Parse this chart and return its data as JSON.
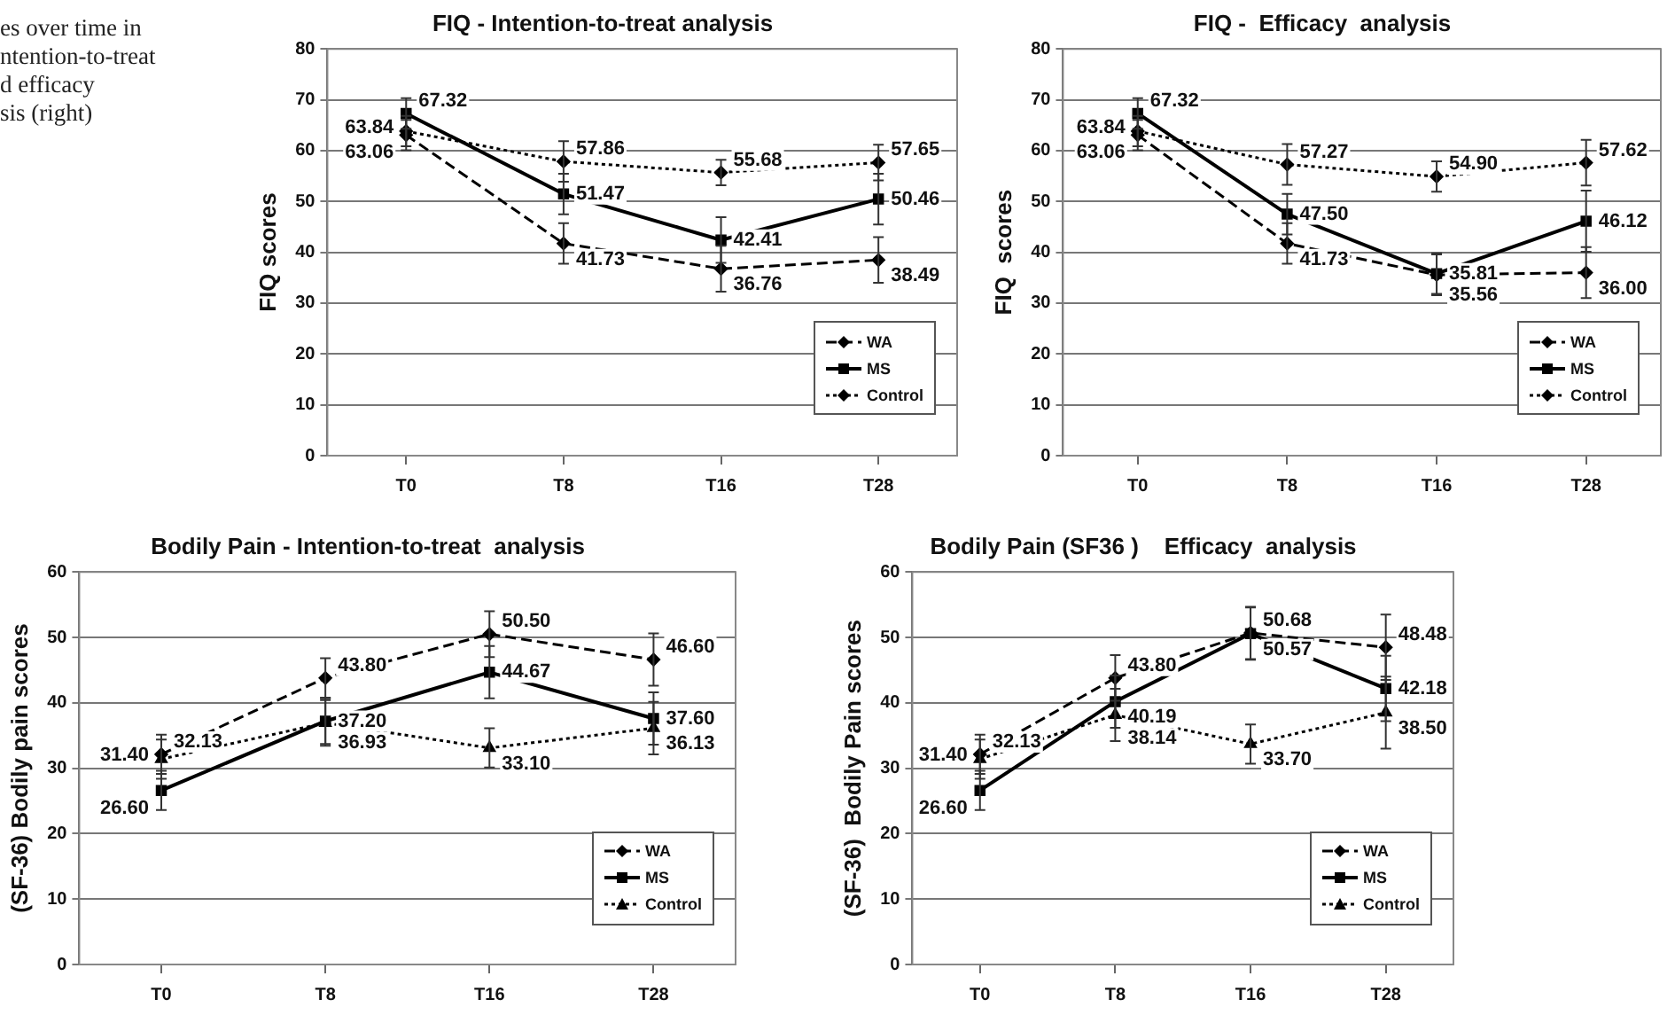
{
  "chart_data": [
    {
      "type": "other",
      "annotations": [
        "es over time in",
        "ntention-to-treat",
        "d efficacy",
        "sis (right)"
      ]
    },
    {
      "type": "line",
      "title": "FIQ - Intention-to-treat analysis",
      "ylabel": "FIQ scores",
      "categories": [
        "T0",
        "T8",
        "T16",
        "T28"
      ],
      "ylim": [
        0,
        80
      ],
      "yticks": [
        0,
        10,
        20,
        30,
        40,
        50,
        60,
        70,
        80
      ],
      "grid": "y",
      "legend": "bottom right",
      "series": [
        {
          "name": "WA",
          "color": "#000000",
          "line_style": "dashed",
          "marker": "diamond",
          "values": [
            63.06,
            41.73,
            36.76,
            38.49
          ],
          "value_labels": [
            "63.06",
            "41.73",
            "36.76",
            "38.49"
          ],
          "errors": [
            3,
            4,
            4.5,
            4.5
          ]
        },
        {
          "name": "MS",
          "color": "#000000",
          "line_style": "solid",
          "marker": "square",
          "values": [
            67.32,
            51.47,
            42.41,
            50.46
          ],
          "value_labels": [
            "67.32",
            "51.47",
            "42.41",
            "50.46"
          ],
          "errors": [
            3,
            4,
            4.5,
            5
          ]
        },
        {
          "name": "Control",
          "color": "#000000",
          "line_style": "dotted",
          "marker": "diamond",
          "values": [
            63.84,
            57.86,
            55.68,
            57.65
          ],
          "value_labels": [
            "63.84",
            "57.86",
            "55.68",
            "57.65"
          ],
          "errors": [
            3,
            4,
            2.5,
            3.5
          ]
        }
      ]
    },
    {
      "type": "line",
      "title": "FIQ -  Efficacy  analysis",
      "ylabel": "FIQ  scores",
      "categories": [
        "T0",
        "T8",
        "T16",
        "T28"
      ],
      "ylim": [
        0,
        80
      ],
      "yticks": [
        0,
        10,
        20,
        30,
        40,
        50,
        60,
        70,
        80
      ],
      "grid": "y",
      "legend": "bottom right",
      "series": [
        {
          "name": "WA",
          "color": "#000000",
          "line_style": "dashed",
          "marker": "diamond",
          "values": [
            63.06,
            41.73,
            35.56,
            36.0
          ],
          "value_labels": [
            "63.06",
            "41.73",
            "35.56",
            "36.00"
          ],
          "errors": [
            3,
            4,
            4,
            5
          ]
        },
        {
          "name": "MS",
          "color": "#000000",
          "line_style": "solid",
          "marker": "square",
          "values": [
            67.32,
            47.5,
            35.81,
            46.12
          ],
          "value_labels": [
            "67.32",
            "47.50",
            "35.81",
            "46.12"
          ],
          "errors": [
            3,
            4,
            4,
            6
          ]
        },
        {
          "name": "Control",
          "color": "#000000",
          "line_style": "dotted",
          "marker": "diamond",
          "values": [
            63.84,
            57.27,
            54.9,
            57.62
          ],
          "value_labels": [
            "63.84",
            "57.27",
            "54.90",
            "57.62"
          ],
          "errors": [
            3,
            4,
            3,
            4.5
          ]
        }
      ]
    },
    {
      "type": "line",
      "title": "Bodily Pain - Intention-to-treat  analysis",
      "ylabel": "(SF-36) Bodily pain scores",
      "categories": [
        "T0",
        "T8",
        "T16",
        "T28"
      ],
      "ylim": [
        0,
        60
      ],
      "yticks": [
        0,
        10,
        20,
        30,
        40,
        50,
        60
      ],
      "grid": "y",
      "legend": "bottom right",
      "series": [
        {
          "name": "WA",
          "color": "#000000",
          "line_style": "dashed",
          "marker": "diamond",
          "values": [
            32.13,
            43.8,
            50.5,
            46.6
          ],
          "value_labels": [
            "32.13",
            "43.80",
            "50.50",
            "46.60"
          ],
          "errors": [
            3,
            3,
            3.5,
            4
          ]
        },
        {
          "name": "MS",
          "color": "#000000",
          "line_style": "solid",
          "marker": "square",
          "values": [
            26.6,
            37.2,
            44.67,
            37.6
          ],
          "value_labels": [
            "26.60",
            "37.20",
            "44.67",
            "37.60"
          ],
          "errors": [
            3,
            3.5,
            4,
            4
          ]
        },
        {
          "name": "Control",
          "color": "#000000",
          "line_style": "dotted",
          "marker": "triangle",
          "values": [
            31.4,
            36.93,
            33.1,
            36.13
          ],
          "value_labels": [
            "31.40",
            "36.93",
            "33.10",
            "36.13"
          ],
          "errors": [
            3,
            3.5,
            3,
            4
          ]
        }
      ]
    },
    {
      "type": "line",
      "title": "Bodily Pain (SF36 )    Efficacy  analysis",
      "ylabel": "(SF-36)  Bodily Pain scores",
      "categories": [
        "T0",
        "T8",
        "T16",
        "T28"
      ],
      "ylim": [
        0,
        60
      ],
      "yticks": [
        0,
        10,
        20,
        30,
        40,
        50,
        60
      ],
      "grid": "y",
      "legend": "bottom right",
      "series": [
        {
          "name": "WA",
          "color": "#000000",
          "line_style": "dashed",
          "marker": "diamond",
          "values": [
            32.13,
            43.8,
            50.68,
            48.48
          ],
          "value_labels": [
            "32.13",
            "43.80",
            "50.68",
            "48.48"
          ],
          "errors": [
            3,
            3.5,
            4,
            5
          ]
        },
        {
          "name": "MS",
          "color": "#000000",
          "line_style": "solid",
          "marker": "square",
          "values": [
            26.6,
            40.19,
            50.57,
            42.18
          ],
          "value_labels": [
            "26.60",
            "40.19",
            "50.57",
            "42.18"
          ],
          "errors": [
            3,
            4,
            4,
            5
          ]
        },
        {
          "name": "Control",
          "color": "#000000",
          "line_style": "dotted",
          "marker": "triangle",
          "values": [
            31.4,
            38.14,
            33.7,
            38.5
          ],
          "value_labels": [
            "31.40",
            "38.14",
            "33.70",
            "38.50"
          ],
          "errors": [
            3,
            4,
            3,
            5.5
          ]
        }
      ]
    }
  ]
}
